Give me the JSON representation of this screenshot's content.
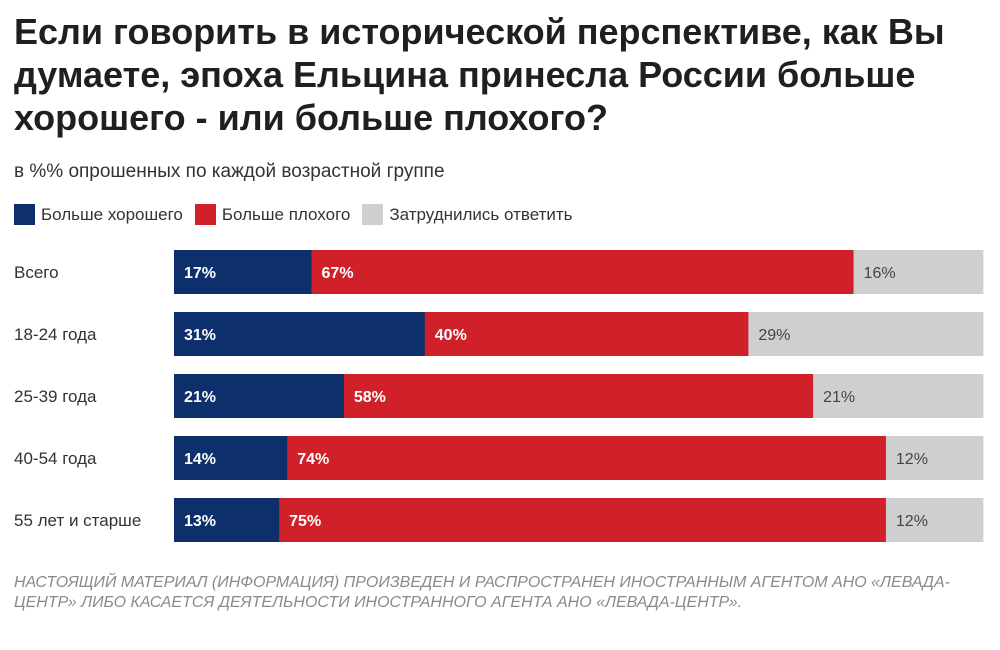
{
  "chart_data": {
    "type": "bar",
    "orientation": "horizontal",
    "stacked": true,
    "title": "Если говорить в исторической перспективе, как Вы думаете, эпоха Ельцина принесла России больше хорошего - или больше плохого?",
    "subtitle": "в %% опрошенных по каждой возрастной группе",
    "legend_position": "top-left",
    "grid": false,
    "categories": [
      "Всего",
      "18-24 года",
      "25-39 года",
      "40-54 года",
      "55 лет и старше"
    ],
    "series": [
      {
        "name": "Больше хорошего",
        "color": "#0d2f6b",
        "label_color": "#ffffff",
        "values": [
          17,
          31,
          21,
          14,
          13
        ]
      },
      {
        "name": "Больше плохого",
        "color": "#d0202a",
        "label_color": "#ffffff",
        "values": [
          67,
          40,
          58,
          74,
          75
        ]
      },
      {
        "name": "Затруднились ответить",
        "color": "#cfcfcf",
        "label_color": "#444444",
        "values": [
          16,
          29,
          21,
          12,
          12
        ]
      }
    ],
    "value_suffix": "%"
  },
  "footer": "НАСТОЯЩИЙ МАТЕРИАЛ (ИНФОРМАЦИЯ) ПРОИЗВЕДЕН И РАСПРОСТРАНЕН ИНОСТРАННЫМ АГЕНТОМ АНО «ЛЕВАДА-ЦЕНТР» ЛИБО КАСАЕТСЯ ДЕЯТЕЛЬНОСТИ ИНОСТРАННОГО АГЕНТА АНО «ЛЕВАДА-ЦЕНТР»."
}
